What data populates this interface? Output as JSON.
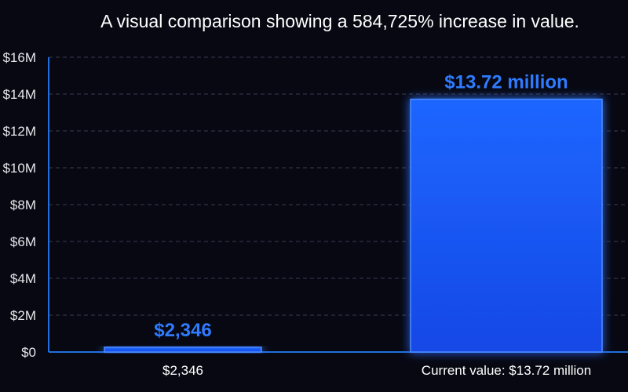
{
  "chart_data": {
    "type": "bar",
    "title": "A visual comparison showing a 584,725% increase in value.",
    "categories": [
      "$2,346",
      "Current value: $13.72 million"
    ],
    "values": [
      2346,
      13720000
    ],
    "data_labels": [
      "$2,346",
      "$13.72 million"
    ],
    "yticks": [
      0,
      2000000,
      4000000,
      6000000,
      8000000,
      10000000,
      12000000,
      14000000,
      16000000
    ],
    "ytick_labels": [
      "$0",
      "$2M",
      "$4M",
      "$6M",
      "$8M",
      "$10M",
      "$12M",
      "$14M",
      "$16M"
    ],
    "ylim": [
      0,
      16000000
    ],
    "xlabel": "",
    "ylabel": "",
    "grid": true,
    "colors": {
      "background": "#070812",
      "bar": "#1a5cff",
      "bar_edge": "#4d8dff",
      "data_label": "#2f7bff",
      "grid": "#3a3d52",
      "axis": "#1f6fe0"
    }
  }
}
